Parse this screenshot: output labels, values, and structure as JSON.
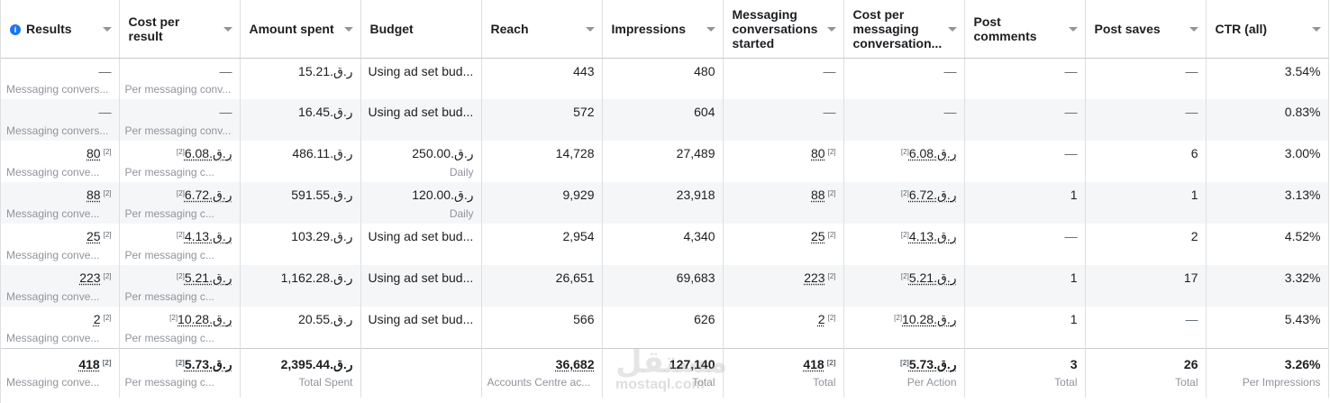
{
  "columns": [
    {
      "label": "Results",
      "info": true
    },
    {
      "label": "Cost per result"
    },
    {
      "label": "Amount spent"
    },
    {
      "label": "Budget",
      "no_caret": true
    },
    {
      "label": "Reach"
    },
    {
      "label": "Impressions"
    },
    {
      "label": "Messaging conversations started"
    },
    {
      "label": "Cost per messaging conversation..."
    },
    {
      "label": "Post comments"
    },
    {
      "label": "Post saves"
    },
    {
      "label": "CTR (all)"
    }
  ],
  "rows": [
    {
      "results": {
        "value": "—",
        "sub": "Messaging convers..."
      },
      "cost_per_result": {
        "value": "—",
        "sub": "Per messaging conv..."
      },
      "amount_spent": "ر.ق.15.21",
      "budget": {
        "value": "Using ad set bud...",
        "sub": ""
      },
      "reach": "443",
      "impressions": "480",
      "messaging": "—",
      "cost_per_messaging": "—",
      "post_comments": "—",
      "post_saves": "—",
      "ctr": "3.54%"
    },
    {
      "results": {
        "value": "—",
        "sub": "Messaging convers..."
      },
      "cost_per_result": {
        "value": "—",
        "sub": "Per messaging conv..."
      },
      "amount_spent": "ر.ق.16.45",
      "budget": {
        "value": "Using ad set bud...",
        "sub": ""
      },
      "reach": "572",
      "impressions": "604",
      "messaging": "—",
      "cost_per_messaging": "—",
      "post_comments": "—",
      "post_saves": "—",
      "ctr": "0.83%"
    },
    {
      "results": {
        "value": "80",
        "sup": "[2]",
        "sub": "Messaging conve..."
      },
      "cost_per_result": {
        "value": "ر.ق.6.08",
        "sup": "[2]",
        "sub": "Per messaging c..."
      },
      "amount_spent": "ر.ق.486.11",
      "budget": {
        "value": "ر.ق.250.00",
        "sub": "Daily"
      },
      "reach": "14,728",
      "impressions": "27,489",
      "messaging": "80",
      "messaging_sup": "[2]",
      "cost_per_messaging": "ر.ق.6.08",
      "cost_per_messaging_sup": "[2]",
      "post_comments": "—",
      "post_saves": "6",
      "ctr": "3.00%"
    },
    {
      "results": {
        "value": "88",
        "sup": "[2]",
        "sub": "Messaging conve..."
      },
      "cost_per_result": {
        "value": "ر.ق.6.72",
        "sup": "[2]",
        "sub": "Per messaging c..."
      },
      "amount_spent": "ر.ق.591.55",
      "budget": {
        "value": "ر.ق.120.00",
        "sub": "Daily"
      },
      "reach": "9,929",
      "impressions": "23,918",
      "messaging": "88",
      "messaging_sup": "[2]",
      "cost_per_messaging": "ر.ق.6.72",
      "cost_per_messaging_sup": "[2]",
      "post_comments": "1",
      "post_saves": "1",
      "ctr": "3.13%"
    },
    {
      "results": {
        "value": "25",
        "sup": "[2]",
        "sub": "Messaging conve..."
      },
      "cost_per_result": {
        "value": "ر.ق.4.13",
        "sup": "[2]",
        "sub": "Per messaging c..."
      },
      "amount_spent": "ر.ق.103.29",
      "budget": {
        "value": "Using ad set bud...",
        "sub": ""
      },
      "reach": "2,954",
      "impressions": "4,340",
      "messaging": "25",
      "messaging_sup": "[2]",
      "cost_per_messaging": "ر.ق.4.13",
      "cost_per_messaging_sup": "[2]",
      "post_comments": "—",
      "post_saves": "2",
      "ctr": "4.52%"
    },
    {
      "results": {
        "value": "223",
        "sup": "[2]",
        "sub": "Messaging conve..."
      },
      "cost_per_result": {
        "value": "ر.ق.5.21",
        "sup": "[2]",
        "sub": "Per messaging c..."
      },
      "amount_spent": "ر.ق.1,162.28",
      "budget": {
        "value": "Using ad set bud...",
        "sub": ""
      },
      "reach": "26,651",
      "impressions": "69,683",
      "messaging": "223",
      "messaging_sup": "[2]",
      "cost_per_messaging": "ر.ق.5.21",
      "cost_per_messaging_sup": "[2]",
      "post_comments": "1",
      "post_saves": "17",
      "ctr": "3.32%"
    },
    {
      "results": {
        "value": "2",
        "sup": "[2]",
        "sub": "Messaging conve..."
      },
      "cost_per_result": {
        "value": "ر.ق.10.28",
        "sup": "[2]",
        "sub": "Per messaging c..."
      },
      "amount_spent": "ر.ق.20.55",
      "budget": {
        "value": "Using ad set bud...",
        "sub": ""
      },
      "reach": "566",
      "impressions": "626",
      "messaging": "2",
      "messaging_sup": "[2]",
      "cost_per_messaging": "ر.ق.10.28",
      "cost_per_messaging_sup": "[2]",
      "post_comments": "1",
      "post_saves": "—",
      "ctr": "5.43%"
    }
  ],
  "totals": {
    "results": {
      "value": "418",
      "sup": "[2]",
      "sub": "Messaging conve..."
    },
    "cost_per_result": {
      "value": "ر.ق.5.73",
      "sup": "[2]",
      "sub": "Per messaging c..."
    },
    "amount_spent": {
      "value": "ر.ق.2,395.44",
      "sub": "Total Spent"
    },
    "reach": {
      "value": "36,682",
      "sub": "Accounts Centre ac..."
    },
    "impressions": {
      "value": "127,140",
      "sub": "Total"
    },
    "messaging": {
      "value": "418",
      "sup": "[2]",
      "sub": "Total"
    },
    "cost_per_messaging": {
      "value": "ر.ق.5.73",
      "sup": "[2]",
      "sub": "Per Action"
    },
    "post_comments": {
      "value": "3",
      "sub": "Total"
    },
    "post_saves": {
      "value": "26",
      "sub": "Total"
    },
    "ctr": {
      "value": "3.26%",
      "sub": "Per Impressions"
    }
  },
  "watermark": {
    "arabic": "مستقل",
    "latin": "mostaql.com"
  },
  "icons": {
    "info": "info-icon",
    "sort": "chevron-down-icon"
  },
  "colors": {
    "info_blue": "#1877f2",
    "border": "#dddfe2",
    "alt_row": "#f5f6f7"
  }
}
